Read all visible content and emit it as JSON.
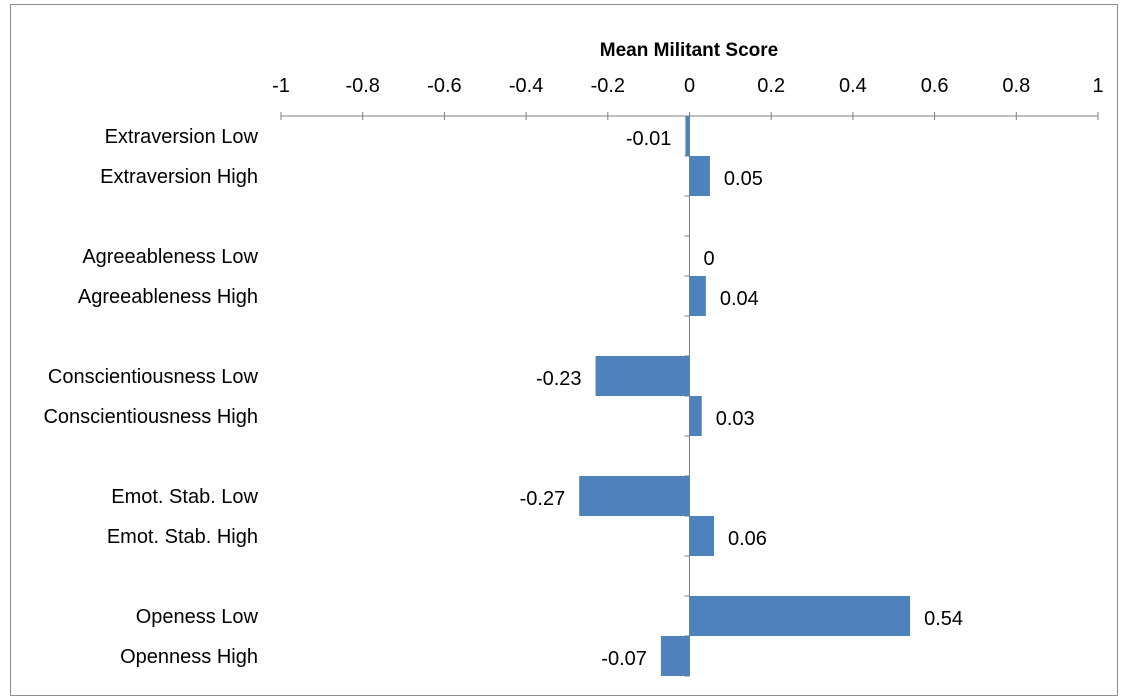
{
  "chart_data": {
    "type": "bar",
    "orientation": "horizontal",
    "title": "",
    "xlabel": "Mean Militant Score",
    "ylabel": "",
    "xlim": [
      -1,
      1
    ],
    "x_ticks": [
      -1,
      -0.8,
      -0.6,
      -0.4,
      -0.2,
      0,
      0.2,
      0.4,
      0.6,
      0.8,
      1
    ],
    "x_tick_labels": [
      "-1",
      "-0.8",
      "-0.6",
      "-0.4",
      "-0.2",
      "0",
      "0.2",
      "0.4",
      "0.6",
      "0.8",
      "1"
    ],
    "axis_position": "top",
    "grid": false,
    "legend": "none",
    "bar_color": "#4f81bd",
    "categories": [
      "Extraversion Low",
      "Extraversion High",
      "Agreeableness Low",
      "Agreeableness High",
      "Conscientiousness Low",
      "Conscientiousness High",
      "Emot. Stab. Low",
      "Emot. Stab. High",
      "Openess Low",
      "Openness High"
    ],
    "values": [
      -0.01,
      0.05,
      0,
      0.04,
      -0.23,
      0.03,
      -0.27,
      0.06,
      0.54,
      -0.07
    ],
    "data_labels": [
      "-0.01",
      "0.05",
      "0",
      "0.04",
      "-0.23",
      "0.03",
      "-0.27",
      "0.06",
      "0.54",
      "-0.07"
    ]
  }
}
